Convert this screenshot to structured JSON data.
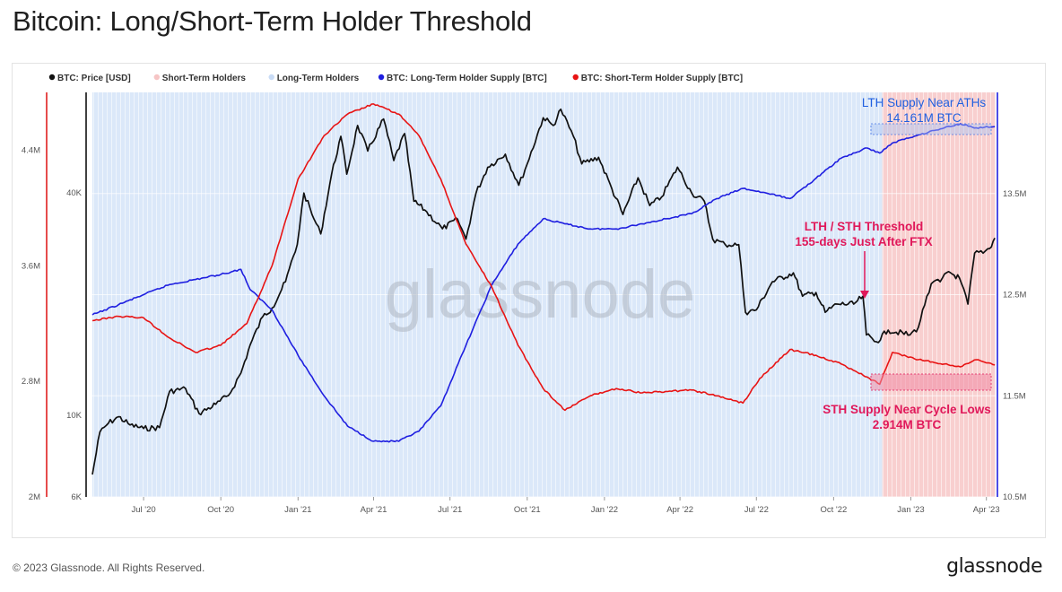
{
  "title": "Bitcoin: Long/Short-Term Holder Threshold",
  "footer": {
    "copyright": "© 2023 Glassnode. All Rights Reserved.",
    "brand": "glassnode"
  },
  "watermark": "glassnode",
  "legend": [
    {
      "label": "BTC: Price [USD]",
      "color": "#111111"
    },
    {
      "label": "Short-Term Holders",
      "color": "#f6c5c5"
    },
    {
      "label": "Long-Term Holders",
      "color": "#c9dcf6"
    },
    {
      "label": "BTC: Long-Term Holder Supply [BTC]",
      "color": "#1f1fe0"
    },
    {
      "label": "BTC: Short-Term Holder Supply [BTC]",
      "color": "#e81414"
    }
  ],
  "annotations": {
    "lth_line1": "LTH Supply Near ATHs",
    "lth_line2": "14.161M BTC",
    "threshold_line1": "LTH / STH Threshold",
    "threshold_line2": "155-days Just After FTX",
    "sth_line1": "STH Supply Near Cycle Lows",
    "sth_line2": "2.914M BTC"
  },
  "colors": {
    "price": "#111111",
    "lth_supply": "#1f1fe0",
    "sth_supply": "#e81414",
    "lth_fill": "#c9dcf6",
    "sth_fill": "#f6c5c5",
    "lth_annotation": "#1f5fe0",
    "sth_annotation": "#e0185a"
  },
  "chart_data": {
    "type": "line",
    "x_axis": {
      "type": "date",
      "range": [
        "2020-05-01",
        "2023-04-12"
      ],
      "ticks": [
        {
          "date": "2020-07-01",
          "label": "Jul '20"
        },
        {
          "date": "2020-10-01",
          "label": "Oct '20"
        },
        {
          "date": "2021-01-01",
          "label": "Jan '21"
        },
        {
          "date": "2021-04-01",
          "label": "Apr '21"
        },
        {
          "date": "2021-07-01",
          "label": "Jul '21"
        },
        {
          "date": "2021-10-01",
          "label": "Oct '21"
        },
        {
          "date": "2022-01-01",
          "label": "Jan '22"
        },
        {
          "date": "2022-04-01",
          "label": "Apr '22"
        },
        {
          "date": "2022-07-01",
          "label": "Jul '22"
        },
        {
          "date": "2022-10-01",
          "label": "Oct '22"
        },
        {
          "date": "2023-01-01",
          "label": "Jan '23"
        },
        {
          "date": "2023-04-01",
          "label": "Apr '23"
        }
      ]
    },
    "y_axes": {
      "sth_supply": {
        "range": [
          2000000,
          4800000
        ],
        "ticks": [
          {
            "value": 2000000,
            "label": "2M"
          },
          {
            "value": 2800000,
            "label": "2.8M"
          },
          {
            "value": 3600000,
            "label": "3.6M"
          },
          {
            "value": 4400000,
            "label": "4.4M"
          }
        ]
      },
      "price": {
        "scale": "log",
        "range": [
          6000,
          75000
        ],
        "ticks": [
          {
            "value": 6000,
            "label": "6K"
          },
          {
            "value": 10000,
            "label": "10K"
          },
          {
            "value": 40000,
            "label": "40K"
          }
        ]
      },
      "lth_supply": {
        "range": [
          10500000,
          14500000
        ],
        "ticks": [
          {
            "value": 10500000,
            "label": "10.5M"
          },
          {
            "value": 11500000,
            "label": "11.5M"
          },
          {
            "value": 12500000,
            "label": "12.5M"
          },
          {
            "value": 13500000,
            "label": "13.5M"
          }
        ]
      }
    },
    "regimes": [
      {
        "name": "Long-Term Holders",
        "from": "2020-05-01",
        "to": "2022-11-28"
      },
      {
        "name": "Short-Term Holders",
        "from": "2022-11-28",
        "to": "2023-04-12"
      }
    ],
    "series": [
      {
        "name": "BTC: Price [USD]",
        "axis": "price",
        "points": [
          [
            "2020-05-01",
            6900
          ],
          [
            "2020-05-10",
            9000
          ],
          [
            "2020-05-20",
            9500
          ],
          [
            "2020-06-01",
            9900
          ],
          [
            "2020-06-15",
            9400
          ],
          [
            "2020-07-01",
            9200
          ],
          [
            "2020-07-20",
            9250
          ],
          [
            "2020-08-01",
            11600
          ],
          [
            "2020-08-20",
            11800
          ],
          [
            "2020-09-05",
            10100
          ],
          [
            "2020-09-25",
            10700
          ],
          [
            "2020-10-10",
            11300
          ],
          [
            "2020-10-25",
            13000
          ],
          [
            "2020-11-05",
            15500
          ],
          [
            "2020-11-20",
            18500
          ],
          [
            "2020-12-01",
            19500
          ],
          [
            "2020-12-17",
            23000
          ],
          [
            "2020-12-31",
            29000
          ],
          [
            "2021-01-08",
            40000
          ],
          [
            "2021-01-20",
            34000
          ],
          [
            "2021-01-28",
            31000
          ],
          [
            "2021-02-10",
            45000
          ],
          [
            "2021-02-21",
            57000
          ],
          [
            "2021-02-28",
            45000
          ],
          [
            "2021-03-13",
            61000
          ],
          [
            "2021-03-25",
            52000
          ],
          [
            "2021-04-13",
            63500
          ],
          [
            "2021-04-25",
            49000
          ],
          [
            "2021-05-08",
            58000
          ],
          [
            "2021-05-19",
            38000
          ],
          [
            "2021-06-01",
            36000
          ],
          [
            "2021-06-22",
            32000
          ],
          [
            "2021-07-10",
            34000
          ],
          [
            "2021-07-20",
            30000
          ],
          [
            "2021-08-01",
            40000
          ],
          [
            "2021-08-15",
            47000
          ],
          [
            "2021-09-05",
            51000
          ],
          [
            "2021-09-21",
            42000
          ],
          [
            "2021-10-01",
            48000
          ],
          [
            "2021-10-20",
            64000
          ],
          [
            "2021-11-01",
            61000
          ],
          [
            "2021-11-10",
            67500
          ],
          [
            "2021-11-25",
            57000
          ],
          [
            "2021-12-05",
            48000
          ],
          [
            "2021-12-25",
            50000
          ],
          [
            "2022-01-10",
            41000
          ],
          [
            "2022-01-23",
            35000
          ],
          [
            "2022-02-10",
            44000
          ],
          [
            "2022-02-24",
            37000
          ],
          [
            "2022-03-10",
            39000
          ],
          [
            "2022-03-29",
            47000
          ],
          [
            "2022-04-15",
            40000
          ],
          [
            "2022-04-30",
            38000
          ],
          [
            "2022-05-10",
            30000
          ],
          [
            "2022-05-25",
            29000
          ],
          [
            "2022-06-10",
            29000
          ],
          [
            "2022-06-18",
            19000
          ],
          [
            "2022-07-01",
            19300
          ],
          [
            "2022-07-20",
            23000
          ],
          [
            "2022-08-14",
            24300
          ],
          [
            "2022-08-25",
            21000
          ],
          [
            "2022-09-10",
            21500
          ],
          [
            "2022-09-21",
            19000
          ],
          [
            "2022-10-05",
            20000
          ],
          [
            "2022-10-25",
            20000
          ],
          [
            "2022-11-05",
            21000
          ],
          [
            "2022-11-09",
            16500
          ],
          [
            "2022-11-21",
            15800
          ],
          [
            "2022-12-05",
            17000
          ],
          [
            "2022-12-31",
            16500
          ],
          [
            "2023-01-10",
            17300
          ],
          [
            "2023-01-20",
            21000
          ],
          [
            "2023-01-28",
            23000
          ],
          [
            "2023-02-05",
            23000
          ],
          [
            "2023-02-15",
            24500
          ],
          [
            "2023-02-28",
            23500
          ],
          [
            "2023-03-10",
            20000
          ],
          [
            "2023-03-18",
            27500
          ],
          [
            "2023-03-28",
            27500
          ],
          [
            "2023-04-05",
            28300
          ],
          [
            "2023-04-11",
            30200
          ]
        ]
      },
      {
        "name": "BTC: Long-Term Holder Supply [BTC]",
        "axis": "lth_supply",
        "points": [
          [
            "2020-05-01",
            12300000
          ],
          [
            "2020-06-01",
            12400000
          ],
          [
            "2020-07-01",
            12500000
          ],
          [
            "2020-08-01",
            12600000
          ],
          [
            "2020-09-01",
            12650000
          ],
          [
            "2020-10-01",
            12700000
          ],
          [
            "2020-10-25",
            12750000
          ],
          [
            "2020-11-05",
            12550000
          ],
          [
            "2020-12-01",
            12350000
          ],
          [
            "2021-01-01",
            11900000
          ],
          [
            "2021-02-01",
            11500000
          ],
          [
            "2021-03-01",
            11200000
          ],
          [
            "2021-04-01",
            11050000
          ],
          [
            "2021-05-01",
            11050000
          ],
          [
            "2021-05-25",
            11150000
          ],
          [
            "2021-06-20",
            11400000
          ],
          [
            "2021-07-20",
            12000000
          ],
          [
            "2021-08-20",
            12600000
          ],
          [
            "2021-09-20",
            13000000
          ],
          [
            "2021-10-20",
            13250000
          ],
          [
            "2021-11-15",
            13200000
          ],
          [
            "2021-12-15",
            13150000
          ],
          [
            "2022-01-15",
            13150000
          ],
          [
            "2022-02-15",
            13200000
          ],
          [
            "2022-03-15",
            13250000
          ],
          [
            "2022-04-15",
            13300000
          ],
          [
            "2022-05-15",
            13450000
          ],
          [
            "2022-06-15",
            13550000
          ],
          [
            "2022-07-15",
            13500000
          ],
          [
            "2022-08-10",
            13450000
          ],
          [
            "2022-09-10",
            13650000
          ],
          [
            "2022-10-10",
            13850000
          ],
          [
            "2022-11-10",
            13950000
          ],
          [
            "2022-11-25",
            13900000
          ],
          [
            "2022-12-10",
            14000000
          ],
          [
            "2023-01-10",
            14080000
          ],
          [
            "2023-02-10",
            14150000
          ],
          [
            "2023-03-01",
            14190000
          ],
          [
            "2023-03-20",
            14150000
          ],
          [
            "2023-04-11",
            14161000
          ]
        ]
      },
      {
        "name": "BTC: Short-Term Holder Supply [BTC]",
        "axis": "sth_supply",
        "points": [
          [
            "2020-05-01",
            3220000
          ],
          [
            "2020-06-01",
            3250000
          ],
          [
            "2020-07-01",
            3240000
          ],
          [
            "2020-08-01",
            3100000
          ],
          [
            "2020-09-01",
            3000000
          ],
          [
            "2020-10-01",
            3050000
          ],
          [
            "2020-11-01",
            3200000
          ],
          [
            "2020-12-01",
            3600000
          ],
          [
            "2021-01-01",
            4200000
          ],
          [
            "2021-02-01",
            4500000
          ],
          [
            "2021-03-01",
            4650000
          ],
          [
            "2021-04-01",
            4720000
          ],
          [
            "2021-05-01",
            4650000
          ],
          [
            "2021-05-25",
            4500000
          ],
          [
            "2021-06-20",
            4200000
          ],
          [
            "2021-07-20",
            3750000
          ],
          [
            "2021-08-20",
            3450000
          ],
          [
            "2021-09-20",
            3050000
          ],
          [
            "2021-10-20",
            2750000
          ],
          [
            "2021-11-15",
            2600000
          ],
          [
            "2021-12-15",
            2700000
          ],
          [
            "2022-01-15",
            2750000
          ],
          [
            "2022-02-15",
            2720000
          ],
          [
            "2022-03-15",
            2730000
          ],
          [
            "2022-04-15",
            2740000
          ],
          [
            "2022-05-15",
            2700000
          ],
          [
            "2022-06-15",
            2650000
          ],
          [
            "2022-07-05",
            2820000
          ],
          [
            "2022-08-10",
            3020000
          ],
          [
            "2022-09-10",
            2980000
          ],
          [
            "2022-10-10",
            2920000
          ],
          [
            "2022-11-10",
            2830000
          ],
          [
            "2022-11-25",
            2780000
          ],
          [
            "2022-12-10",
            3000000
          ],
          [
            "2023-01-10",
            2950000
          ],
          [
            "2023-02-10",
            2920000
          ],
          [
            "2023-03-01",
            2900000
          ],
          [
            "2023-03-20",
            2950000
          ],
          [
            "2023-04-11",
            2914000
          ]
        ]
      }
    ]
  }
}
